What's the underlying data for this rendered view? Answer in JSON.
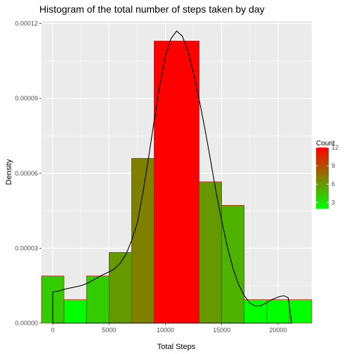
{
  "chart_data": {
    "type": "bar",
    "title": "Histogram of the total number of steps taken by day",
    "xlabel": "Total Steps",
    "ylabel": "Density",
    "xlim": [
      -1000,
      23000
    ],
    "ylim": [
      0,
      0.000121
    ],
    "x_ticks": [
      0,
      5000,
      10000,
      15000,
      20000
    ],
    "x_tick_labels": [
      "0",
      "5000",
      "10000",
      "15000",
      "20000"
    ],
    "y_ticks": [
      0,
      3e-05,
      6e-05,
      9e-05,
      0.00012
    ],
    "y_tick_labels": [
      "0.00000",
      "0.00003",
      "0.00006",
      "0.00009",
      "0.00012"
    ],
    "grid": true,
    "bins": [
      {
        "x0": -1000,
        "x1": 1000,
        "count": 4,
        "density": 1.89e-05
      },
      {
        "x0": 1000,
        "x1": 3000,
        "count": 2,
        "density": 9.4e-06
      },
      {
        "x0": 3000,
        "x1": 5000,
        "count": 4,
        "density": 1.89e-05
      },
      {
        "x0": 5000,
        "x1": 7000,
        "count": 6,
        "density": 2.83e-05
      },
      {
        "x0": 7000,
        "x1": 9000,
        "count": 7,
        "density": 6.6e-05
      },
      {
        "x0": 9000,
        "x1": 13000,
        "count": 12,
        "density": 0.000113
      },
      {
        "x0": 13000,
        "x1": 15000,
        "count": 6,
        "density": 5.66e-05
      },
      {
        "x0": 15000,
        "x1": 17000,
        "count": 5,
        "density": 4.72e-05
      },
      {
        "x0": 17000,
        "x1": 19000,
        "count": 2,
        "density": 9.4e-06
      },
      {
        "x0": 19000,
        "x1": 21000,
        "count": 2,
        "density": 9.4e-06
      },
      {
        "x0": 21000,
        "x1": 23000,
        "count": 2,
        "density": 9.4e-06
      }
    ],
    "density_curve": [
      [
        0,
        1.25e-05
      ],
      [
        500,
        1.28e-05
      ],
      [
        1000,
        1.35e-05
      ],
      [
        1500,
        1.4e-05
      ],
      [
        2000,
        1.45e-05
      ],
      [
        2500,
        1.5e-05
      ],
      [
        3000,
        1.58e-05
      ],
      [
        3500,
        1.7e-05
      ],
      [
        4000,
        1.83e-05
      ],
      [
        4500,
        1.95e-05
      ],
      [
        5000,
        2.05e-05
      ],
      [
        5500,
        2.18e-05
      ],
      [
        6000,
        2.4e-05
      ],
      [
        6500,
        2.75e-05
      ],
      [
        7000,
        3.3e-05
      ],
      [
        7500,
        4e-05
      ],
      [
        8000,
        5.2e-05
      ],
      [
        8500,
        6.6e-05
      ],
      [
        9000,
        8.1e-05
      ],
      [
        9500,
        9.5e-05
      ],
      [
        10000,
        0.000107
      ],
      [
        10500,
        0.000114
      ],
      [
        11000,
        0.000117
      ],
      [
        11500,
        0.000115
      ],
      [
        12000,
        0.000109
      ],
      [
        12500,
        0.0001
      ],
      [
        13000,
        8.95e-05
      ],
      [
        13500,
        7.8e-05
      ],
      [
        14000,
        6.55e-05
      ],
      [
        14500,
        5.25e-05
      ],
      [
        15000,
        4.1e-05
      ],
      [
        15500,
        3.05e-05
      ],
      [
        16000,
        2.2e-05
      ],
      [
        16500,
        1.55e-05
      ],
      [
        17000,
        1.1e-05
      ],
      [
        17500,
        8e-06
      ],
      [
        18000,
        6.8e-06
      ],
      [
        18500,
        7e-06
      ],
      [
        19000,
        8.2e-06
      ],
      [
        19500,
        9.5e-06
      ],
      [
        20000,
        1.04e-05
      ],
      [
        20500,
        1.1e-05
      ],
      [
        20900,
        1.02e-05
      ],
      [
        21200,
        5e-07
      ],
      [
        21200,
        0.0
      ],
      [
        0,
        0.0
      ],
      [
        0,
        1.25e-05
      ]
    ],
    "legend": {
      "title": "Count",
      "position": "right",
      "ticks": [
        3,
        6,
        9,
        12
      ],
      "tick_labels": [
        "3",
        "6",
        "9",
        "12"
      ],
      "range": [
        2,
        12
      ],
      "color_low": "#00ff00",
      "color_high": "#ff0000"
    },
    "colors": {
      "panel_bg": "#ebebeb",
      "grid_major": "#ffffff",
      "bar_outline": "#cc0000",
      "curve": "#000000"
    }
  }
}
